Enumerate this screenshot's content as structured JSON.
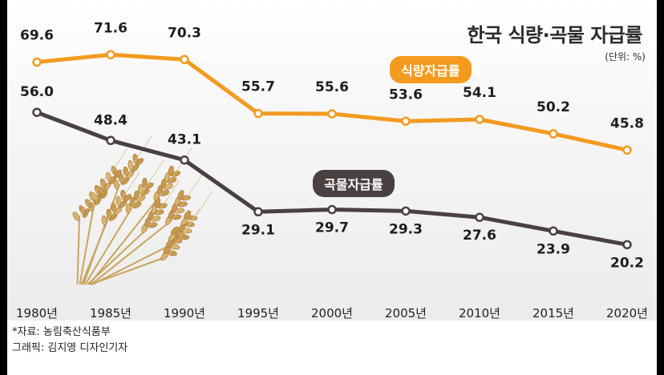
{
  "chart_data": {
    "type": "line",
    "title": "한국 식량·곡물 자급률",
    "unit_note": "(단위: %)",
    "categories": [
      "1980년",
      "1985년",
      "1990년",
      "1995년",
      "2000년",
      "2005년",
      "2010년",
      "2015년",
      "2020년"
    ],
    "series": [
      {
        "name": "식량자급률",
        "color": "#f39a1f",
        "values": [
          69.6,
          71.6,
          70.3,
          55.7,
          55.6,
          53.6,
          54.1,
          50.2,
          45.8
        ],
        "labels": [
          "69.6",
          "71.6",
          "70.3",
          "55.7",
          "55.6",
          "53.6",
          "54.1",
          "50.2",
          "45.8"
        ]
      },
      {
        "name": "곡물자급률",
        "color": "#4a4040",
        "values": [
          56.0,
          48.4,
          43.1,
          29.1,
          29.7,
          29.3,
          27.6,
          23.9,
          20.2
        ],
        "labels": [
          "56.0",
          "48.4",
          "43.1",
          "29.1",
          "29.7",
          "29.3",
          "27.6",
          "23.9",
          "20.2"
        ]
      }
    ],
    "ylim": [
      0,
      90
    ],
    "grid": false,
    "legend": "inline labels"
  },
  "footer": {
    "source": "*자료: 농림축산식품부",
    "credit": "그래픽: 김지영 디자인기자"
  }
}
